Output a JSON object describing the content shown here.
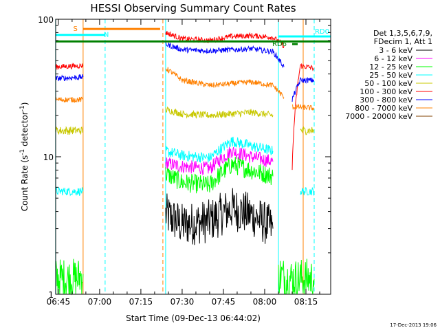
{
  "chart_data": {
    "type": "line",
    "title": "HESSI Observing Summary Count Rates",
    "xlabel": "Start Time (09-Dec-13 06:44:02)",
    "ylabel_main": "Count Rate (s",
    "ylabel_sup1": "-1",
    "ylabel_mid": " detector",
    "ylabel_sup2": "-1",
    "ylabel_end": ")",
    "yscale": "log",
    "ylim": [
      1,
      100
    ],
    "xlim": [
      "06:44:02",
      "08:24:00"
    ],
    "x_ticks": [
      "06:45",
      "07:00",
      "07:15",
      "07:30",
      "07:45",
      "08:00",
      "08:15"
    ],
    "y_ticks": [
      "1",
      "10",
      "100"
    ],
    "legend_position": "right",
    "legend_header": [
      "Det 1,3,5,6,7,9,",
      "FDecim 1, Att 1"
    ],
    "series": [
      {
        "name": "3 - 6 keV",
        "color": "#000000",
        "segments": [
          {
            "x": [
              "07:24",
              "07:30",
              "07:40",
              "07:48",
              "07:55",
              "08:03"
            ],
            "y": [
              3.8,
              3.2,
              3.4,
              4.2,
              3.8,
              3.0
            ],
            "noise": 0.16
          }
        ]
      },
      {
        "name": "6 - 12 keV",
        "color": "#ff00ff",
        "segments": [
          {
            "x": [
              "07:24",
              "07:30",
              "07:40",
              "07:48",
              "07:55",
              "08:03"
            ],
            "y": [
              9.0,
              8.5,
              8.2,
              11.0,
              10.0,
              9.2
            ],
            "noise": 0.05
          }
        ]
      },
      {
        "name": "12 - 25 keV",
        "color": "#00ff00",
        "segments": [
          {
            "x": [
              "06:44",
              "06:52",
              "06:54"
            ],
            "y": [
              1.3,
              1.3,
              1.4
            ],
            "noise": 0.15
          },
          {
            "x": [
              "07:24",
              "07:30",
              "07:40",
              "07:48",
              "07:55",
              "08:03"
            ],
            "y": [
              7.5,
              6.5,
              6.2,
              8.8,
              8.0,
              7.2
            ],
            "noise": 0.07
          },
          {
            "x": [
              "08:05",
              "08:08",
              "08:12",
              "08:14",
              "08:18"
            ],
            "y": [
              1.4,
              1.3,
              1.3,
              1.3,
              1.3
            ],
            "noise": 0.15
          }
        ]
      },
      {
        "name": "25 - 50 keV",
        "color": "#00ffff",
        "segments": [
          {
            "x": [
              "06:44",
              "06:54"
            ],
            "y": [
              5.6,
              5.6
            ],
            "noise": 0.03
          },
          {
            "x": [
              "07:24",
              "07:30",
              "07:40",
              "07:48",
              "07:55",
              "08:03"
            ],
            "y": [
              11.0,
              10.2,
              9.8,
              13.0,
              12.0,
              11.0
            ],
            "noise": 0.04
          },
          {
            "x": [
              "08:13",
              "08:18"
            ],
            "y": [
              5.6,
              5.6
            ],
            "noise": 0.03
          }
        ]
      },
      {
        "name": "50 - 100 keV",
        "color": "#c8c800",
        "segments": [
          {
            "x": [
              "06:44",
              "06:54"
            ],
            "y": [
              15.5,
              15.5
            ],
            "noise": 0.03
          },
          {
            "x": [
              "07:24",
              "07:30",
              "07:40",
              "07:48",
              "07:55",
              "08:03"
            ],
            "y": [
              22.0,
              20.5,
              20.0,
              20.5,
              21.0,
              20.0
            ],
            "noise": 0.025
          },
          {
            "x": [
              "08:13",
              "08:18"
            ],
            "y": [
              15.5,
              15.5
            ],
            "noise": 0.03
          }
        ]
      },
      {
        "name": "100 - 300 keV",
        "color": "#ff0000",
        "segments": [
          {
            "x": [
              "06:44",
              "06:54"
            ],
            "y": [
              45.0,
              46.0
            ],
            "noise": 0.02
          },
          {
            "x": [
              "07:24",
              "07:30",
              "07:40",
              "07:48",
              "07:55",
              "08:03",
              "08:07"
            ],
            "y": [
              80.0,
              72.0,
              70.0,
              75.0,
              76.0,
              74.0,
              64.0
            ],
            "noise": 0.02
          },
          {
            "x": [
              "08:10",
              "08:13",
              "08:18"
            ],
            "y": [
              8.0,
              46.0,
              44.0
            ],
            "noise": 0.02
          }
        ]
      },
      {
        "name": "300 - 800 keV",
        "color": "#0000ff",
        "segments": [
          {
            "x": [
              "06:44",
              "06:54"
            ],
            "y": [
              37.0,
              38.0
            ],
            "noise": 0.02
          },
          {
            "x": [
              "07:24",
              "07:30",
              "07:40",
              "07:48",
              "07:55",
              "08:03",
              "08:07"
            ],
            "y": [
              66.0,
              60.0,
              59.0,
              60.0,
              61.0,
              58.0,
              45.0
            ],
            "noise": 0.02
          },
          {
            "x": [
              "08:10",
              "08:13",
              "08:18"
            ],
            "y": [
              26.0,
              36.0,
              36.0
            ],
            "noise": 0.02
          }
        ]
      },
      {
        "name": "800 - 7000 keV",
        "color": "#ff8000",
        "segments": [
          {
            "x": [
              "06:44",
              "06:54"
            ],
            "y": [
              26.0,
              26.0
            ],
            "noise": 0.02
          },
          {
            "x": [
              "07:24",
              "07:30",
              "07:40",
              "07:48",
              "07:55",
              "08:03",
              "08:07"
            ],
            "y": [
              44.0,
              36.0,
              33.0,
              34.0,
              35.0,
              33.0,
              27.0
            ],
            "noise": 0.02
          },
          {
            "x": [
              "08:10",
              "08:13",
              "08:18"
            ],
            "y": [
              23.0,
              23.0,
              22.5
            ],
            "noise": 0.02
          }
        ]
      },
      {
        "name": "7000 - 20000 keV",
        "color": "#804000",
        "segments": []
      }
    ],
    "vertical_lines": [
      {
        "x": "06:44",
        "color": "#00ffff",
        "dashed": false
      },
      {
        "x": "06:54",
        "color": "#ff8000",
        "dashed": false
      },
      {
        "x": "07:02",
        "color": "#00ffff",
        "dashed": true
      },
      {
        "x": "07:23",
        "color": "#ff8000",
        "dashed": true
      },
      {
        "x": "07:24",
        "color": "#00ffff",
        "dashed": false
      },
      {
        "x": "08:05",
        "color": "#00ffff",
        "dashed": false
      },
      {
        "x": "08:14",
        "color": "#ff8000",
        "dashed": false
      },
      {
        "x": "08:18",
        "color": "#00ffff",
        "dashed": true
      }
    ],
    "bars": [
      {
        "label": "S",
        "color": "#ff8000",
        "x0": "06:54",
        "x1": "07:22",
        "y": 85.0,
        "label_side": "left"
      },
      {
        "label": "N",
        "color": "#00ffff",
        "x0": "06:44",
        "x1": "07:02",
        "y": 77.0,
        "label_side": "right"
      },
      {
        "label": "",
        "color": "#008000",
        "x0": "06:44",
        "x1": "08:24",
        "y": 69.0,
        "label_side": "none"
      },
      {
        "label": "RD0",
        "color": "#00ffff",
        "x0": "08:05",
        "x1": "08:24",
        "y": 75.0,
        "label_side": "above-right"
      },
      {
        "label": "RD6",
        "color": "#008000",
        "x0": "08:10",
        "x1": "08:12",
        "y": 66.0,
        "label_side": "left"
      }
    ]
  },
  "timestamp": "17-Dec-2013 19:06"
}
